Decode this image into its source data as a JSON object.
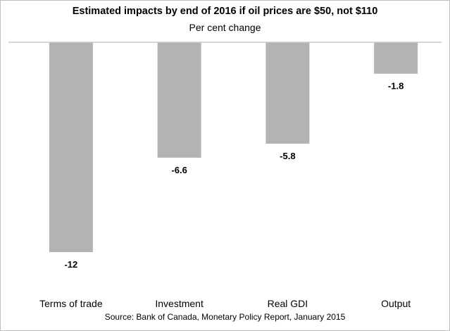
{
  "chart_data": {
    "type": "bar",
    "title": "Estimated impacts by end of 2016 if oil prices are $50, not $110",
    "subtitle": "Per cent change",
    "source": "Source: Bank of Canada, Monetary Policy Report, January 2015",
    "categories": [
      "Terms of trade",
      "Investment",
      "Real GDI",
      "Output"
    ],
    "values": [
      -12,
      -6.6,
      -5.8,
      -1.8
    ],
    "data_labels": [
      "-12",
      "-6.6",
      "-5.8",
      "-1.8"
    ],
    "ylim": [
      -12,
      0
    ],
    "grid": false,
    "bar_color": "#b3b3b3",
    "xlabel": "",
    "ylabel": ""
  }
}
